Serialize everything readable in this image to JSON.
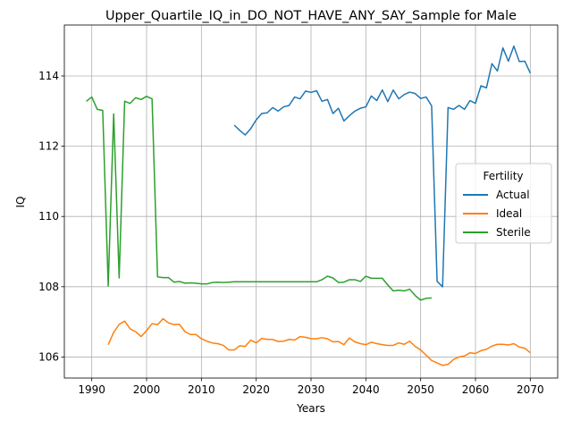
{
  "chart_data": {
    "type": "line",
    "title": "Upper_Quartile_IQ_in_DO_NOT_HAVE_ANY_SAY_Sample for Male",
    "xlabel": "Years",
    "ylabel": "IQ",
    "xlim": [
      1985,
      2075
    ],
    "ylim": [
      105.4,
      115.45
    ],
    "xticks": [
      1990,
      2000,
      2010,
      2020,
      2030,
      2040,
      2050,
      2060,
      2070
    ],
    "yticks": [
      106,
      108,
      110,
      112,
      114
    ],
    "grid": true,
    "legend": {
      "title": "Fertility",
      "placement": "center-right"
    },
    "series": [
      {
        "name": "Actual",
        "color": "#1f77b4",
        "points": [
          [
            2016,
            112.6
          ],
          [
            2017,
            112.45
          ],
          [
            2018,
            112.32
          ],
          [
            2019,
            112.5
          ],
          [
            2020,
            112.75
          ],
          [
            2021,
            112.93
          ],
          [
            2022,
            112.95
          ],
          [
            2023,
            113.1
          ],
          [
            2024,
            113.0
          ],
          [
            2025,
            113.12
          ],
          [
            2026,
            113.16
          ],
          [
            2027,
            113.4
          ],
          [
            2028,
            113.35
          ],
          [
            2029,
            113.57
          ],
          [
            2030,
            113.53
          ],
          [
            2031,
            113.58
          ],
          [
            2032,
            113.28
          ],
          [
            2033,
            113.33
          ],
          [
            2034,
            112.93
          ],
          [
            2035,
            113.08
          ],
          [
            2036,
            112.72
          ],
          [
            2037,
            112.87
          ],
          [
            2038,
            113.0
          ],
          [
            2039,
            113.08
          ],
          [
            2040,
            113.12
          ],
          [
            2041,
            113.43
          ],
          [
            2042,
            113.3
          ],
          [
            2043,
            113.6
          ],
          [
            2044,
            113.27
          ],
          [
            2045,
            113.6
          ],
          [
            2046,
            113.35
          ],
          [
            2047,
            113.47
          ],
          [
            2048,
            113.54
          ],
          [
            2049,
            113.5
          ],
          [
            2050,
            113.36
          ],
          [
            2051,
            113.4
          ],
          [
            2052,
            113.15
          ],
          [
            2053,
            108.15
          ],
          [
            2054,
            108.0
          ],
          [
            2055,
            113.1
          ],
          [
            2056,
            113.05
          ],
          [
            2057,
            113.16
          ],
          [
            2058,
            113.05
          ],
          [
            2059,
            113.3
          ],
          [
            2060,
            113.22
          ],
          [
            2061,
            113.72
          ],
          [
            2062,
            113.66
          ],
          [
            2063,
            114.35
          ],
          [
            2064,
            114.14
          ],
          [
            2065,
            114.8
          ],
          [
            2066,
            114.42
          ],
          [
            2067,
            114.85
          ],
          [
            2068,
            114.41
          ],
          [
            2069,
            114.42
          ],
          [
            2070,
            114.08
          ]
        ]
      },
      {
        "name": "Ideal",
        "color": "#ff7f0e",
        "points": [
          [
            1993,
            106.35
          ],
          [
            1994,
            106.7
          ],
          [
            1995,
            106.93
          ],
          [
            1996,
            107.02
          ],
          [
            1997,
            106.8
          ],
          [
            1998,
            106.72
          ],
          [
            1999,
            106.58
          ],
          [
            2000,
            106.75
          ],
          [
            2001,
            106.95
          ],
          [
            2002,
            106.92
          ],
          [
            2003,
            107.09
          ],
          [
            2004,
            106.97
          ],
          [
            2005,
            106.92
          ],
          [
            2006,
            106.93
          ],
          [
            2007,
            106.72
          ],
          [
            2008,
            106.64
          ],
          [
            2009,
            106.64
          ],
          [
            2010,
            106.52
          ],
          [
            2011,
            106.45
          ],
          [
            2012,
            106.4
          ],
          [
            2013,
            106.38
          ],
          [
            2014,
            106.33
          ],
          [
            2015,
            106.2
          ],
          [
            2016,
            106.2
          ],
          [
            2017,
            106.32
          ],
          [
            2018,
            106.3
          ],
          [
            2019,
            106.48
          ],
          [
            2020,
            106.4
          ],
          [
            2021,
            106.53
          ],
          [
            2022,
            106.5
          ],
          [
            2023,
            106.5
          ],
          [
            2024,
            106.44
          ],
          [
            2025,
            106.45
          ],
          [
            2026,
            106.5
          ],
          [
            2027,
            106.48
          ],
          [
            2028,
            106.58
          ],
          [
            2029,
            106.56
          ],
          [
            2030,
            106.52
          ],
          [
            2031,
            106.52
          ],
          [
            2032,
            106.55
          ],
          [
            2033,
            106.52
          ],
          [
            2034,
            106.43
          ],
          [
            2035,
            106.44
          ],
          [
            2036,
            106.35
          ],
          [
            2037,
            106.54
          ],
          [
            2038,
            106.43
          ],
          [
            2039,
            106.38
          ],
          [
            2040,
            106.35
          ],
          [
            2041,
            106.42
          ],
          [
            2042,
            106.38
          ],
          [
            2043,
            106.35
          ],
          [
            2044,
            106.33
          ],
          [
            2045,
            106.33
          ],
          [
            2046,
            106.4
          ],
          [
            2047,
            106.36
          ],
          [
            2048,
            106.45
          ],
          [
            2049,
            106.3
          ],
          [
            2050,
            106.2
          ],
          [
            2051,
            106.05
          ],
          [
            2052,
            105.9
          ],
          [
            2053,
            105.83
          ],
          [
            2054,
            105.76
          ],
          [
            2055,
            105.79
          ],
          [
            2056,
            105.93
          ],
          [
            2057,
            106.0
          ],
          [
            2058,
            106.03
          ],
          [
            2059,
            106.12
          ],
          [
            2060,
            106.1
          ],
          [
            2061,
            106.18
          ],
          [
            2062,
            106.22
          ],
          [
            2063,
            106.31
          ],
          [
            2064,
            106.36
          ],
          [
            2065,
            106.36
          ],
          [
            2066,
            106.34
          ],
          [
            2067,
            106.38
          ],
          [
            2068,
            106.28
          ],
          [
            2069,
            106.25
          ],
          [
            2070,
            106.12
          ]
        ]
      },
      {
        "name": "Sterile",
        "color": "#2ca02c",
        "points": [
          [
            1989,
            113.28
          ],
          [
            1990,
            113.4
          ],
          [
            1991,
            113.05
          ],
          [
            1992,
            113.02
          ],
          [
            1993,
            108.02
          ],
          [
            1994,
            112.92
          ],
          [
            1995,
            108.25
          ],
          [
            1996,
            113.28
          ],
          [
            1997,
            113.22
          ],
          [
            1998,
            113.38
          ],
          [
            1999,
            113.33
          ],
          [
            2000,
            113.42
          ],
          [
            2001,
            113.35
          ],
          [
            2002,
            108.28
          ],
          [
            2003,
            108.26
          ],
          [
            2004,
            108.26
          ],
          [
            2005,
            108.13
          ],
          [
            2006,
            108.15
          ],
          [
            2007,
            108.1
          ],
          [
            2008,
            108.11
          ],
          [
            2009,
            108.1
          ],
          [
            2010,
            108.08
          ],
          [
            2011,
            108.08
          ],
          [
            2012,
            108.12
          ],
          [
            2013,
            108.13
          ],
          [
            2014,
            108.12
          ],
          [
            2015,
            108.13
          ],
          [
            2016,
            108.14
          ],
          [
            2017,
            108.14
          ],
          [
            2018,
            108.14
          ],
          [
            2019,
            108.14
          ],
          [
            2020,
            108.14
          ],
          [
            2021,
            108.14
          ],
          [
            2022,
            108.14
          ],
          [
            2023,
            108.14
          ],
          [
            2024,
            108.14
          ],
          [
            2025,
            108.14
          ],
          [
            2026,
            108.14
          ],
          [
            2027,
            108.14
          ],
          [
            2028,
            108.14
          ],
          [
            2029,
            108.14
          ],
          [
            2030,
            108.14
          ],
          [
            2031,
            108.14
          ],
          [
            2032,
            108.2
          ],
          [
            2033,
            108.3
          ],
          [
            2034,
            108.25
          ],
          [
            2035,
            108.12
          ],
          [
            2036,
            108.13
          ],
          [
            2037,
            108.2
          ],
          [
            2038,
            108.2
          ],
          [
            2039,
            108.15
          ],
          [
            2040,
            108.3
          ],
          [
            2041,
            108.24
          ],
          [
            2042,
            108.24
          ],
          [
            2043,
            108.24
          ],
          [
            2044,
            108.05
          ],
          [
            2045,
            107.88
          ],
          [
            2046,
            107.9
          ],
          [
            2047,
            107.88
          ],
          [
            2048,
            107.93
          ],
          [
            2049,
            107.75
          ],
          [
            2050,
            107.62
          ],
          [
            2051,
            107.67
          ],
          [
            2052,
            107.68
          ]
        ]
      }
    ]
  }
}
